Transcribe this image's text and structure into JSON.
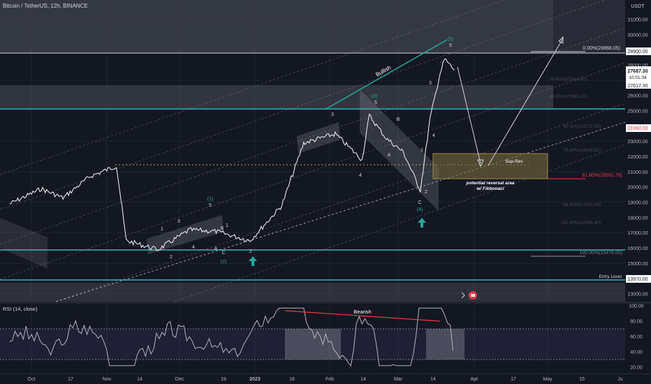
{
  "header": {
    "title": "Bitcoin / TetherUS, 12h, BINANCE",
    "currency": "USDT"
  },
  "rsi_panel": {
    "title": "RSI (14, close)",
    "levels": [
      100,
      80,
      60,
      40,
      20
    ]
  },
  "price_axis": {
    "ticks": [
      "31000.00",
      "30000.00",
      "29000.00",
      "28000.00",
      "27000.00",
      "26000.00",
      "25000.00",
      "24000.00",
      "23000.00",
      "22000.00",
      "21000.00",
      "20000.00",
      "19000.00",
      "18000.00",
      "17000.00",
      "16000.00",
      "15000.00",
      "14000.00",
      "13000.00"
    ],
    "price_tag": "27687.30",
    "countdown": "10:01:34",
    "open_tag": "27617.30",
    "level_tag_1": "28900.00",
    "level_tag_2": "21960.00",
    "level_tag_3": "13970.00"
  },
  "time_axis": {
    "labels": [
      "Oct",
      "17",
      "Nov",
      "14",
      "Dec",
      "19",
      "2023",
      "16",
      "Feb",
      "14",
      "Mar",
      "14",
      "Apr",
      "17",
      "May",
      "15",
      "Ju"
    ]
  },
  "fib": {
    "top": "0.00%(28868.05)",
    "mid": "61.80%(20591.76)",
    "bottom": "100.00%(15476.00)",
    "faint": [
      "23.60%(25914.52)",
      "38.20%(23961.20)",
      "50.00%(22172.00)",
      "78.60%(18626.82)",
      "88.60%(17421.24)",
      "161.80%(12596.40)"
    ]
  },
  "annotations": {
    "bullish": "Bullish",
    "bearish": "Bearish",
    "sup_res": "Sup-Res",
    "reversal_1": "potential reversal area",
    "reversal_2": "w/ Fibbonaci",
    "entry": "Entry Level"
  },
  "wave_labels": {
    "w1": "(1)",
    "w1_5": "5",
    "w1_1": "1",
    "w1_2": "2",
    "w1_3": "3",
    "w1_4": "4",
    "wB": "B",
    "w1b": "1",
    "wA": "A",
    "wC": "C",
    "w2": "(2)",
    "w2_2": "2",
    "w3_3": "3",
    "w4": "4",
    "w3": "(3)",
    "w3_5": "5",
    "wA2": "A",
    "wB2": "B",
    "wC2": "C",
    "w4n": "(4)",
    "w4_1": "1",
    "w4_2": "2",
    "w5_3": "3",
    "w5_4": "4",
    "w5": "(5)",
    "w5_5": "5"
  },
  "colors": {
    "background": "#131722",
    "candle": "#e6e6e6",
    "teal": "#26a69a",
    "red": "#f23645",
    "zone": "#786b3c",
    "band": "#6a6d78",
    "rsi_line": "#9598a1"
  },
  "chart_data": {
    "type": "line",
    "title": "Bitcoin / TetherUS, 12h, BINANCE",
    "ylabel": "USDT",
    "ylim": [
      12500,
      32000
    ],
    "x": [
      "Oct",
      "Nov",
      "Dec",
      "2023",
      "Feb",
      "Mar",
      "Apr",
      "May"
    ],
    "price_path": [
      [
        "Sep 22",
        18900
      ],
      [
        "Oct 5",
        19900
      ],
      [
        "Oct 14",
        19300
      ],
      [
        "Oct 25",
        20700
      ],
      [
        "Nov 5",
        21400
      ],
      [
        "Nov 9",
        16500
      ],
      [
        "Nov 22",
        15900
      ],
      [
        "Dec 5",
        17200
      ],
      [
        "Dec 16",
        17100
      ],
      [
        "Dec 30",
        16500
      ],
      [
        "Jan 12",
        18800
      ],
      [
        "Jan 21",
        22900
      ],
      [
        "Feb 3",
        23500
      ],
      [
        "Feb 14",
        21800
      ],
      [
        "Feb 17",
        24700
      ],
      [
        "Feb 24",
        23200
      ],
      [
        "Mar 3",
        22300
      ],
      [
        "Mar 10",
        19800
      ],
      [
        "Mar 14",
        24500
      ],
      [
        "Mar 18",
        27400
      ],
      [
        "Mar 20",
        28400
      ],
      [
        "Mar 24",
        27687.3
      ]
    ],
    "rsi": {
      "title": "RSI (14, close)",
      "ylim": [
        20,
        100
      ],
      "bands": [
        30,
        70
      ]
    },
    "levels": {
      "resistance": 28900.0,
      "fib_0": 28868.05,
      "fib_618": 20591.76,
      "fib_100": 15476.0,
      "price": 27687.3,
      "open": 27617.3,
      "support": 21960.0,
      "entry": 13970.0
    },
    "grid": true,
    "legend": "none"
  }
}
